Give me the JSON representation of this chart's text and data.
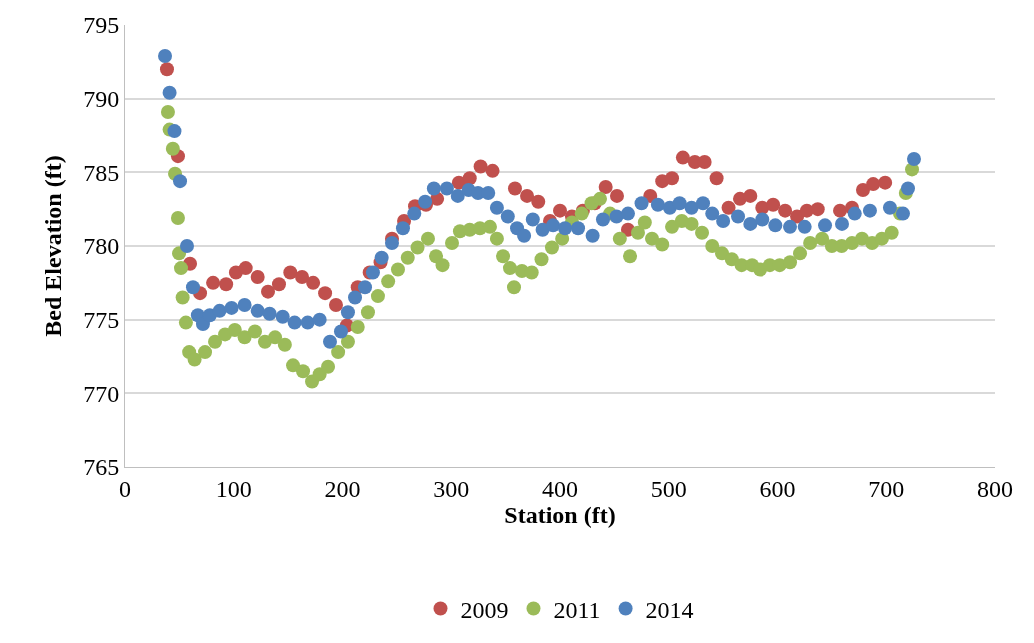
{
  "chart_data": {
    "type": "scatter",
    "xlabel": "Station (ft)",
    "ylabel": "Bed Elevation (ft)",
    "xlim": [
      0,
      800
    ],
    "xticks": [
      0,
      100,
      200,
      300,
      400,
      500,
      600,
      700,
      800
    ],
    "ylim": [
      765,
      795
    ],
    "yticks": [
      765,
      770,
      775,
      780,
      785,
      790,
      795
    ],
    "grid": "y",
    "legend": "bottom",
    "marker": "circle",
    "series": [
      {
        "name": "2009",
        "color": "#c0504d",
        "x": [
          38.6,
          48.7,
          59.8,
          69,
          81,
          93,
          102,
          111,
          122,
          131.5,
          141.6,
          152,
          162.8,
          173,
          184,
          194,
          204,
          214,
          225,
          235,
          245.5,
          256.6,
          266.7,
          276.8,
          287,
          307,
          317,
          327,
          338,
          358.6,
          369.7,
          380,
          390.8,
          400,
          411,
          421,
          432,
          442,
          452.4,
          462.5,
          483,
          494,
          503,
          513,
          524,
          533,
          544,
          555,
          565.5,
          575,
          586,
          596,
          607,
          618,
          627,
          637,
          657.5,
          668.5,
          678.6,
          688,
          699
        ],
        "values": [
          792.0,
          786.1,
          778.8,
          776.8,
          777.5,
          777.4,
          778.2,
          778.5,
          777.9,
          776.9,
          777.4,
          778.2,
          777.9,
          777.5,
          776.8,
          776.0,
          774.6,
          777.2,
          778.2,
          778.9,
          780.5,
          781.7,
          782.7,
          782.8,
          783.2,
          784.3,
          784.6,
          785.4,
          785.1,
          783.9,
          783.4,
          783.0,
          781.7,
          782.4,
          782.0,
          782.4,
          782.9,
          784.0,
          783.4,
          781.1,
          783.4,
          784.4,
          784.6,
          786.0,
          785.7,
          785.7,
          784.6,
          782.6,
          783.2,
          783.4,
          782.6,
          782.8,
          782.4,
          782.0,
          782.4,
          782.5,
          782.4,
          782.6,
          783.8,
          784.2,
          784.3
        ]
      },
      {
        "name": "2011",
        "color": "#9bbb59",
        "x": [
          39.5,
          41,
          44,
          46,
          48.7,
          49.7,
          51.5,
          53,
          56,
          59,
          64,
          73.6,
          82.8,
          92,
          101,
          110,
          119.5,
          128.7,
          138,
          147,
          154.5,
          163.7,
          172,
          179,
          186.7,
          196,
          205,
          214,
          223.4,
          232.6,
          242,
          251,
          260,
          269,
          278.6,
          286,
          292,
          300.7,
          308,
          317,
          326.4,
          335.6,
          342,
          347.6,
          354,
          357.7,
          365,
          374,
          383,
          392.6,
          402,
          411,
          420,
          429,
          436.8,
          446,
          455,
          464.4,
          471.7,
          478,
          484.6,
          494,
          503,
          512,
          521,
          530.6,
          540,
          549,
          558,
          567,
          576.6,
          584,
          593,
          602,
          611.5,
          620.7,
          630,
          641,
          650,
          659,
          668.5,
          677.7,
          687,
          696,
          705,
          712.6,
          718,
          723.7
        ],
        "values": [
          789.1,
          787.9,
          786.6,
          784.9,
          781.9,
          779.5,
          778.5,
          776.5,
          774.8,
          772.8,
          772.3,
          772.8,
          773.5,
          774.0,
          774.3,
          773.8,
          774.2,
          773.5,
          773.8,
          773.3,
          771.9,
          771.5,
          770.8,
          771.3,
          771.8,
          772.8,
          773.5,
          774.5,
          775.5,
          776.6,
          777.6,
          778.4,
          779.2,
          779.9,
          780.5,
          779.3,
          778.7,
          780.2,
          781.0,
          781.1,
          781.2,
          781.3,
          780.5,
          779.3,
          778.5,
          777.2,
          778.3,
          778.2,
          779.1,
          779.9,
          780.5,
          781.6,
          782.2,
          782.9,
          783.2,
          782.2,
          780.5,
          779.3,
          780.9,
          781.6,
          780.5,
          780.1,
          781.3,
          781.7,
          781.5,
          780.9,
          780.0,
          779.5,
          779.1,
          778.7,
          778.7,
          778.4,
          778.7,
          778.7,
          778.9,
          779.5,
          780.2,
          780.5,
          780.0,
          780.0,
          780.2,
          780.5,
          780.2,
          780.5,
          780.9,
          782.2,
          783.6,
          785.2
        ]
      },
      {
        "name": "2014",
        "color": "#4f81bd",
        "x": [
          36.8,
          41,
          45.5,
          50.6,
          57,
          62.5,
          67,
          71.7,
          78,
          87,
          98,
          110,
          122,
          133,
          145,
          156,
          168,
          179,
          188.5,
          198.6,
          205,
          211.5,
          220.7,
          228,
          236,
          245.5,
          255.6,
          266,
          276,
          284,
          296,
          306,
          316,
          324.6,
          334,
          342,
          352,
          360.5,
          367,
          375,
          384,
          393.6,
          404.6,
          416.6,
          430,
          439.5,
          452,
          462.5,
          475,
          490,
          501,
          510,
          521,
          531.5,
          540,
          550,
          563.7,
          575,
          586,
          598,
          611.5,
          625,
          643.7,
          659.3,
          671,
          685,
          703.4,
          715.4,
          720,
          725.5
        ],
        "values": [
          792.9,
          790.4,
          787.8,
          784.4,
          780.0,
          777.2,
          775.3,
          774.7,
          775.3,
          775.6,
          775.8,
          776.0,
          775.6,
          775.4,
          775.2,
          774.8,
          774.8,
          775.0,
          773.5,
          774.2,
          775.5,
          776.5,
          777.2,
          778.2,
          779.2,
          780.2,
          781.2,
          782.2,
          783.0,
          783.9,
          783.9,
          783.4,
          783.8,
          783.6,
          783.6,
          782.6,
          782.0,
          781.2,
          780.7,
          781.8,
          781.1,
          781.4,
          781.2,
          781.2,
          780.7,
          781.8,
          782.0,
          782.2,
          782.9,
          782.8,
          782.6,
          782.9,
          782.6,
          782.9,
          782.2,
          781.7,
          782.0,
          781.5,
          781.8,
          781.4,
          781.3,
          781.3,
          781.4,
          781.5,
          782.2,
          782.4,
          782.6,
          782.2,
          783.9,
          785.9
        ]
      }
    ]
  }
}
